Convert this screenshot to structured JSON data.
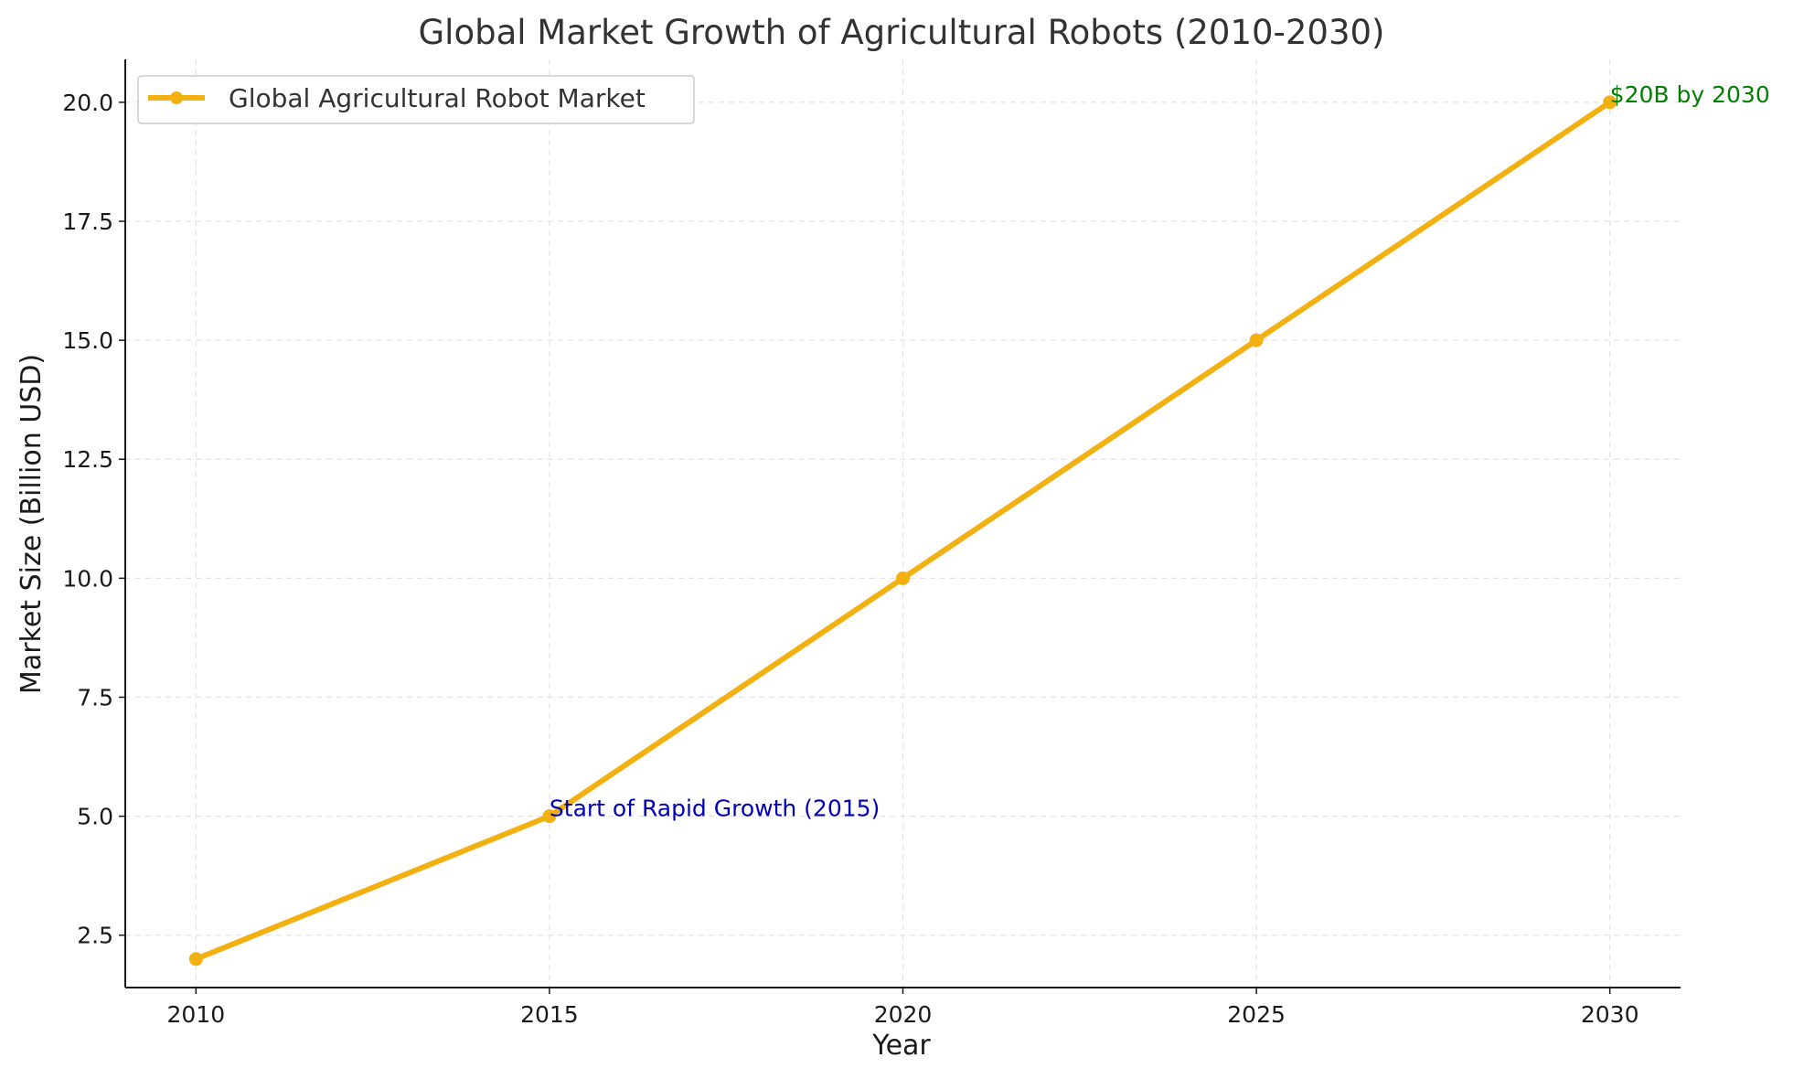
{
  "chart_data": {
    "type": "line",
    "title": "Global Market Growth of Agricultural Robots (2010-2030)",
    "xlabel": "Year",
    "ylabel": "Market Size (Billion USD)",
    "x": [
      2010,
      2015,
      2020,
      2025,
      2030
    ],
    "series": [
      {
        "name": "Global Agricultural Robot Market",
        "values": [
          2,
          5,
          10,
          15,
          20
        ],
        "color": "#f2b011",
        "marker": "circle"
      }
    ],
    "xlim": [
      2009,
      2031
    ],
    "ylim": [
      1.4,
      20.9
    ],
    "xticks": [
      "2010",
      "2015",
      "2020",
      "2025",
      "2030"
    ],
    "yticks": [
      "2.5",
      "5.0",
      "7.5",
      "10.0",
      "12.5",
      "15.0",
      "17.5",
      "20.0"
    ],
    "grid": true,
    "legend_position": "top-left",
    "annotations": [
      {
        "text": "Start of Rapid Growth (2015)",
        "x": 2015,
        "y": 5,
        "color": "#0000bb"
      },
      {
        "text": "$20B by 2030",
        "x": 2030,
        "y": 20,
        "color": "#008000"
      }
    ]
  }
}
